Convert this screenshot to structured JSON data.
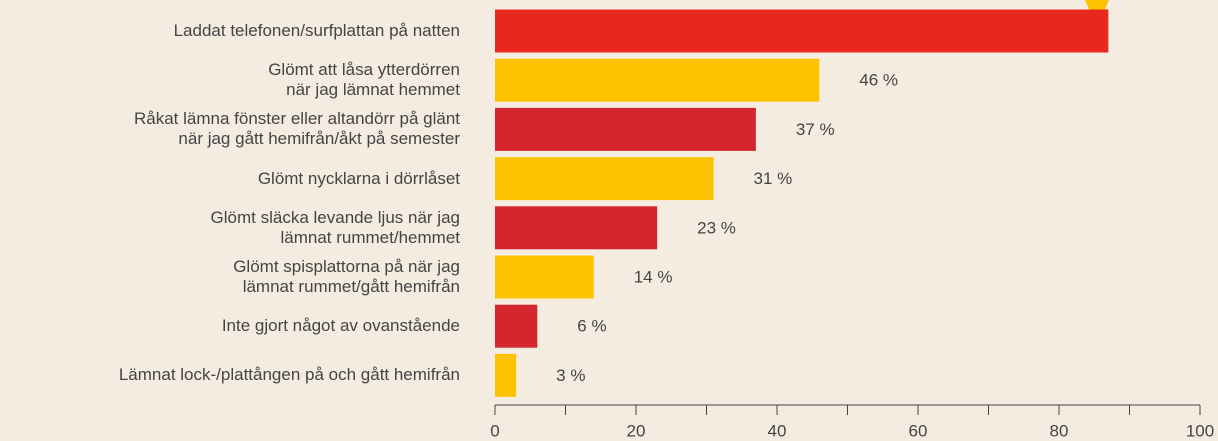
{
  "chart_data": {
    "type": "bar",
    "orientation": "horizontal",
    "categories": [
      "Laddat telefonen/surfplattan på natten",
      "Glömt att låsa ytterdörren\nnär jag lämnat hemmet",
      "Råkat lämna fönster eller altandörr på glänt\nnär jag gått hemifrån/åkt på semester",
      "Glömt nycklarna i dörrlåset",
      "Glömt släcka levande ljus när jag\nlämnat rummet/hemmet",
      "Glömt spisplattorna på när jag\nlämnat rummet/gått hemifrån",
      "Inte gjort något av ovanstående",
      "Lämnat lock-/plattången på och gått hemifrån"
    ],
    "values": [
      87,
      46,
      37,
      31,
      23,
      14,
      6,
      3
    ],
    "value_labels": [
      null,
      "46 %",
      "37 %",
      "31 %",
      "23 %",
      "14 %",
      "6 %",
      "3 %"
    ],
    "colors": [
      "#e8281e",
      "#fdc300",
      "#d4262e",
      "#fdc300",
      "#d4262e",
      "#fdc300",
      "#d4262e",
      "#fdc300"
    ],
    "xlim": [
      0,
      100
    ],
    "xticks": [
      0,
      20,
      40,
      60,
      80,
      100
    ],
    "xticks_minor": [
      10,
      30,
      50,
      70,
      90
    ]
  }
}
